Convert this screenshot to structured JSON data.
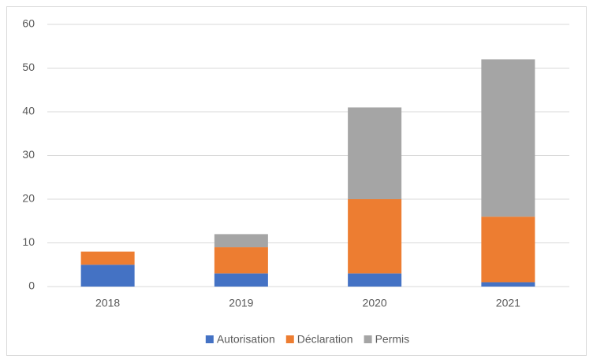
{
  "chart_data": {
    "type": "stacked_bar",
    "categories": [
      "2018",
      "2019",
      "2020",
      "2021"
    ],
    "series": [
      {
        "name": "Autorisation",
        "color": "#4472c4",
        "values": [
          5,
          3,
          3,
          1
        ]
      },
      {
        "name": "Déclaration",
        "color": "#ed7d31",
        "values": [
          3,
          6,
          17,
          15
        ]
      },
      {
        "name": "Permis",
        "color": "#a5a5a5",
        "values": [
          0,
          3,
          21,
          36
        ]
      }
    ],
    "ylim": [
      0,
      60
    ],
    "yticks": [
      0,
      10,
      20,
      30,
      40,
      50,
      60
    ],
    "grid": true,
    "legend": "bottom"
  }
}
